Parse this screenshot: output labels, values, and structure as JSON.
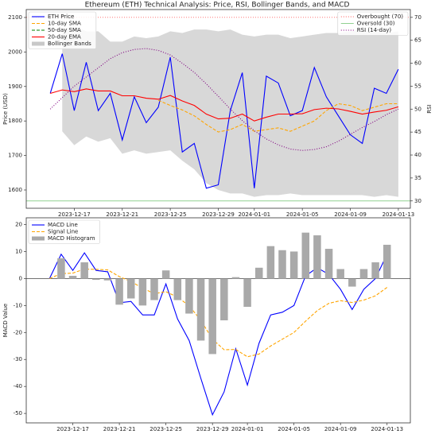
{
  "chart_data": [
    {
      "type": "line",
      "title": "Ethereum (ETH) Technical Analysis: Price, RSI, Bollinger Bands, and MACD",
      "ylabel": "Price (USD)",
      "y2label": "RSI",
      "x": [
        "2023-12-15",
        "2023-12-16",
        "2023-12-17",
        "2023-12-18",
        "2023-12-19",
        "2023-12-20",
        "2023-12-21",
        "2023-12-22",
        "2023-12-23",
        "2023-12-24",
        "2023-12-25",
        "2023-12-26",
        "2023-12-27",
        "2023-12-28",
        "2023-12-29",
        "2023-12-30",
        "2023-12-31",
        "2024-01-01",
        "2024-01-02",
        "2024-01-03",
        "2024-01-04",
        "2024-01-05",
        "2024-01-06",
        "2024-01-07",
        "2024-01-08",
        "2024-01-09",
        "2024-01-10",
        "2024-01-11",
        "2024-01-12",
        "2024-01-13"
      ],
      "xlim": [
        "2023-12-13",
        "2024-01-14"
      ],
      "xticks": [
        "2023-12-17",
        "2023-12-21",
        "2023-12-25",
        "2023-12-29",
        "2024-01-01",
        "2024-01-05",
        "2024-01-09",
        "2024-01-13"
      ],
      "ylim": [
        1547,
        2123
      ],
      "yticks": [
        1600,
        1700,
        1800,
        1900,
        2000,
        2100
      ],
      "y2lim": [
        28.4,
        71.7
      ],
      "y2ticks": [
        30,
        35,
        40,
        45,
        50,
        55,
        60,
        65,
        70
      ],
      "legend": "upper left",
      "legend2": "upper right",
      "band": {
        "name": "Bollinger Bands",
        "color": "#c8c8c8",
        "upper": [
          null,
          2065,
          2075,
          2060,
          2060,
          2030,
          2030,
          2045,
          2040,
          2045,
          2060,
          2055,
          2065,
          2065,
          2060,
          2065,
          2050,
          2045,
          2050,
          2050,
          2040,
          2045,
          2050,
          2055,
          2055,
          2060,
          2065,
          2060,
          2055,
          2060
        ],
        "lower": [
          null,
          1770,
          1730,
          1755,
          1740,
          1750,
          1705,
          1715,
          1705,
          1710,
          1715,
          1685,
          1660,
          1620,
          1600,
          1590,
          1590,
          1580,
          1585,
          1585,
          1590,
          1585,
          1585,
          1585,
          1585,
          1585,
          1585,
          1580,
          1585,
          1580
        ]
      },
      "series": [
        {
          "name": "ETH Price",
          "color": "#0000ff",
          "style": "solid",
          "values": [
            1880,
            1995,
            1830,
            1970,
            1830,
            1880,
            1745,
            1870,
            1795,
            1840,
            1985,
            1710,
            1735,
            1605,
            1615,
            1830,
            1940,
            1605,
            1930,
            1910,
            1815,
            1830,
            1955,
            1870,
            1815,
            1760,
            1735,
            1895,
            1880,
            1950
          ]
        },
        {
          "name": "10-day SMA",
          "color": "#ffa500",
          "style": "dashed",
          "values": [
            null,
            null,
            null,
            null,
            null,
            null,
            null,
            null,
            null,
            1860,
            1845,
            1832,
            1815,
            1790,
            1768,
            1775,
            1790,
            1770,
            1775,
            1780,
            1770,
            1785,
            1800,
            1830,
            1850,
            1845,
            1830,
            1840,
            1850,
            1850
          ]
        },
        {
          "name": "50-day SMA",
          "color": "#008000",
          "style": "dashed",
          "values": [
            null,
            null,
            null,
            null,
            null,
            null,
            null,
            null,
            null,
            null,
            null,
            null,
            null,
            null,
            null,
            null,
            null,
            null,
            null,
            null,
            null,
            null,
            null,
            null,
            null,
            null,
            null,
            null,
            null,
            null
          ]
        },
        {
          "name": "20-day EMA",
          "color": "#ff0000",
          "style": "solid",
          "values": [
            1880,
            1890,
            1885,
            1893,
            1887,
            1887,
            1873,
            1873,
            1866,
            1863,
            1874,
            1858,
            1845,
            1820,
            1806,
            1808,
            1820,
            1800,
            1811,
            1820,
            1820,
            1821,
            1833,
            1837,
            1835,
            1828,
            1820,
            1826,
            1831,
            1841
          ]
        },
        {
          "name": "RSI (14-day)",
          "color": "#800080",
          "style": "dotted",
          "axis": "y2",
          "values": [
            50,
            52.5,
            55,
            57,
            59,
            61,
            62.3,
            63,
            63.2,
            62.8,
            61.8,
            60,
            58,
            55.5,
            52.8,
            50,
            47.5,
            45.3,
            43.5,
            42.2,
            41.3,
            41,
            41.2,
            41.8,
            43,
            44.5,
            46,
            47.3,
            48.8,
            50
          ]
        }
      ],
      "hlines": [
        {
          "name": "Overbought (70)",
          "value": 70,
          "color": "#ff6060",
          "style": "dotted",
          "axis": "y2"
        },
        {
          "name": "Oversold (30)",
          "value": 30,
          "color": "#90d090",
          "style": "solid",
          "axis": "y2"
        }
      ]
    },
    {
      "type": "line",
      "ylabel": "MACD Value",
      "x": [
        "2023-12-15",
        "2023-12-16",
        "2023-12-17",
        "2023-12-18",
        "2023-12-19",
        "2023-12-20",
        "2023-12-21",
        "2023-12-22",
        "2023-12-23",
        "2023-12-24",
        "2023-12-25",
        "2023-12-26",
        "2023-12-27",
        "2023-12-28",
        "2023-12-29",
        "2023-12-30",
        "2023-12-31",
        "2024-01-01",
        "2024-01-02",
        "2024-01-03",
        "2024-01-04",
        "2024-01-05",
        "2024-01-06",
        "2024-01-07",
        "2024-01-08",
        "2024-01-09",
        "2024-01-10",
        "2024-01-11",
        "2024-01-12",
        "2024-01-13"
      ],
      "xlim": [
        "2023-12-13",
        "2024-01-15"
      ],
      "xticks": [
        "2023-12-17",
        "2023-12-21",
        "2023-12-25",
        "2023-12-29",
        "2024-01-01",
        "2024-01-05",
        "2024-01-09",
        "2024-01-13"
      ],
      "ylim": [
        -53.5,
        22.5
      ],
      "yticks": [
        -50,
        -40,
        -30,
        -20,
        -10,
        0,
        10,
        20
      ],
      "legend": "upper left",
      "zero_line": true,
      "series": [
        {
          "name": "MACD Line",
          "color": "#0000ff",
          "style": "solid",
          "values": [
            0,
            9,
            3,
            9.5,
            3,
            2.5,
            -9,
            -8.5,
            -13.5,
            -13.5,
            -2,
            -15,
            -23,
            -37,
            -50.5,
            -42,
            -26,
            -39.5,
            -24,
            -13.5,
            -12.5,
            -10,
            1,
            4,
            1.5,
            -4,
            -11.5,
            -4,
            0,
            9
          ]
        },
        {
          "name": "Signal Line",
          "color": "#ffa500",
          "style": "dashed",
          "values": [
            0,
            1.8,
            2,
            3.5,
            3.4,
            3.2,
            0.7,
            -1.1,
            -3.6,
            -5.6,
            -4.9,
            -6.9,
            -10.1,
            -15.5,
            -22.5,
            -26.4,
            -26.3,
            -29,
            -28,
            -25,
            -22.5,
            -20,
            -15.8,
            -11.9,
            -9.2,
            -8.2,
            -8.9,
            -8,
            -6.4,
            -3.3
          ]
        },
        {
          "name": "MACD Histogram",
          "color": "#a9a9a9",
          "type": "bar",
          "values": [
            0,
            7.5,
            1,
            6,
            -0.5,
            -0.7,
            -9.7,
            -7.4,
            -10,
            -8,
            3,
            -8,
            -13,
            -23,
            -28,
            -15.5,
            0.5,
            -10.5,
            4,
            12,
            10.5,
            10,
            17,
            16,
            11,
            3.5,
            -3,
            3.5,
            6,
            12.5
          ]
        }
      ]
    }
  ]
}
